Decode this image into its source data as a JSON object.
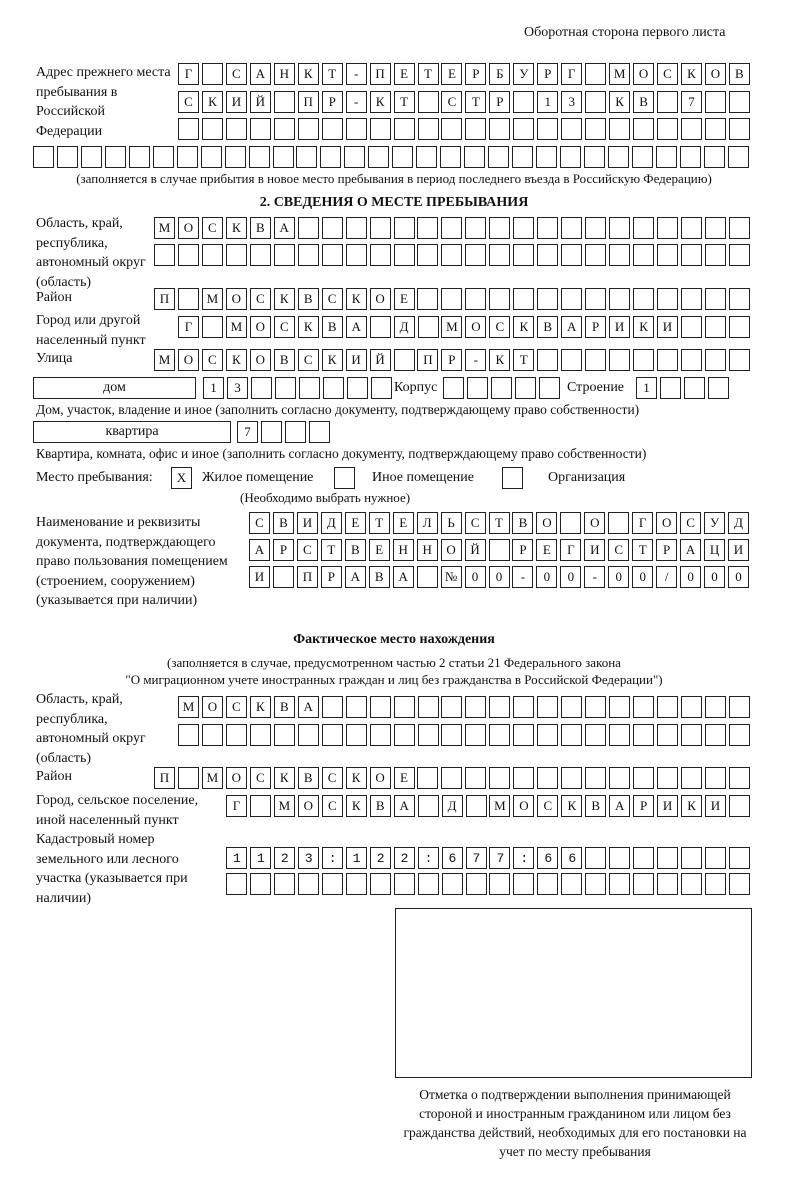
{
  "header": {
    "side_note": "Оборотная сторона первого листа"
  },
  "previous_address": {
    "label": "Адрес прежнего места пребывания в Российской Федерации",
    "rows": [
      "Г САНКТ-ПЕТЕРБУРГ МОСКОВ",
      "СКИЙ ПР-КТ СТР 13 КВ 7  ",
      "                        ",
      "                              "
    ],
    "note": "(заполняется в случае прибытия в новое место пребывания в период последнего въезда в Российскую Федерацию)"
  },
  "section2": {
    "heading": "2. СВЕДЕНИЯ О МЕСТЕ ПРЕБЫВАНИЯ",
    "region_label": "Область, край, республика, автономный округ (область)",
    "region_rows": [
      "МОСКВА                   ",
      "                         "
    ],
    "district_label": "Район",
    "district_row": "П МОСКВСКОЕ              ",
    "city_label": "Город или другой населенный пункт",
    "city_row": "Г МОСКВА Д МОСКВАРИКИ   ",
    "street_label": "Улица",
    "street_row": "МОСКОВСКИЙ ПР-КТ         ",
    "house_type": "дом",
    "house_cells": "13      ",
    "korpus_label": "Корпус",
    "korpus_cells": "     ",
    "stroenie_label": "Строение",
    "stroenie_cells": "1   ",
    "house_note": "Дом, участок, владение и иное (заполнить согласно документу, подтверждающему право собственности)",
    "apt_type": "квартира",
    "apt_cells": "7   ",
    "apt_note": "Квартира, комната, офис и иное (заполнить согласно документу, подтверждающему право собственности)",
    "stay_label": "Место пребывания:",
    "stay_options": [
      {
        "label": "Жилое помещение",
        "mark": "X"
      },
      {
        "label": "Иное помещение",
        "mark": ""
      },
      {
        "label": "Организация",
        "mark": ""
      }
    ],
    "stay_hint": "(Необходимо выбрать нужное)",
    "doc_label": "Наименование и реквизиты документа, подтверждающего право пользования помещением (строением, сооружением) (указывается при наличии)",
    "doc_rows": [
      "СВИДЕТЕЛЬСТВО О ГОСУД",
      "АРСТВЕННОЙ РЕГИСТРАЦИ",
      "И ПРАВА №00-00-00/000"
    ]
  },
  "actual": {
    "heading": "Фактическое место нахождения",
    "note_line1": "(заполняется в случае, предусмотренном частью 2 статьи 21 Федерального закона",
    "note_line2": "\"О миграционном учете иностранных граждан и лиц без гражданства в Российской Федерации\")",
    "region_label": "Область, край, республика, автономный округ (область)",
    "region_rows": [
      "МОСКВА                  ",
      "                        "
    ],
    "district_label": "Район",
    "district_row": "П МОСКВСКОЕ              ",
    "city_label": "Город, сельское поселение, иной населенный пункт",
    "city_row": "Г МОСКВА Д МОСКВАРИКИ ",
    "cadastre_label": "Кадастровый номер земельного или лесного участка (указывается при наличии)",
    "cadastre_rows": [
      "1123:122:677:66       ",
      "                      "
    ]
  },
  "stamp": {
    "caption": "Отметка о подтверждении выполнения принимающей стороной и иностранным гражданином или лицом без гражданства действий, необходимых для его постановки на учет по месту пребывания"
  }
}
